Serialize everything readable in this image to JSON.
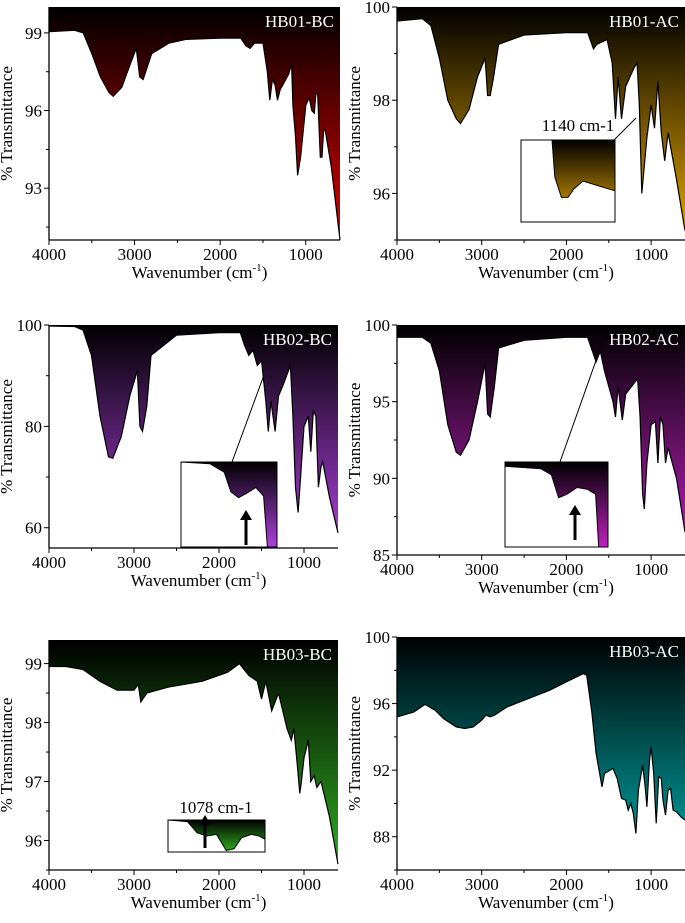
{
  "chart_data": [
    {
      "type": "area",
      "title": "HB01-BC",
      "color": "#e00000",
      "xlabel": "Wavenumber (cm-1)",
      "ylabel": "% Transmittance",
      "xlim": [
        4000,
        600
      ],
      "ylim": [
        91,
        100
      ],
      "xticks": [
        4000,
        3000,
        2000,
        1000
      ],
      "yticks": [
        93,
        96,
        99
      ],
      "points": [
        [
          4000,
          99.05
        ],
        [
          3700,
          99.1
        ],
        [
          3600,
          99.0
        ],
        [
          3500,
          98.2
        ],
        [
          3400,
          97.3
        ],
        [
          3300,
          96.7
        ],
        [
          3250,
          96.55
        ],
        [
          3150,
          96.9
        ],
        [
          3050,
          97.8
        ],
        [
          2980,
          98.4
        ],
        [
          2940,
          97.3
        ],
        [
          2900,
          97.2
        ],
        [
          2860,
          97.6
        ],
        [
          2800,
          98.2
        ],
        [
          2600,
          98.6
        ],
        [
          2400,
          98.75
        ],
        [
          2000,
          98.8
        ],
        [
          1760,
          98.8
        ],
        [
          1700,
          98.5
        ],
        [
          1650,
          98.4
        ],
        [
          1600,
          98.6
        ],
        [
          1500,
          98.6
        ],
        [
          1450,
          97.5
        ],
        [
          1420,
          96.4
        ],
        [
          1390,
          97.2
        ],
        [
          1360,
          97.0
        ],
        [
          1330,
          96.4
        ],
        [
          1300,
          96.8
        ],
        [
          1250,
          97.1
        ],
        [
          1200,
          97.4
        ],
        [
          1165,
          97.8
        ],
        [
          1150,
          96.2
        ],
        [
          1120,
          95.0
        ],
        [
          1095,
          93.5
        ],
        [
          1060,
          94.2
        ],
        [
          1000,
          96.2
        ],
        [
          960,
          96.5
        ],
        [
          930,
          96.0
        ],
        [
          900,
          95.9
        ],
        [
          880,
          96.7
        ],
        [
          860,
          96.6
        ],
        [
          830,
          94.2
        ],
        [
          810,
          94.2
        ],
        [
          790,
          95.3
        ],
        [
          770,
          95.2
        ],
        [
          700,
          93.8
        ],
        [
          600,
          91.0
        ]
      ]
    },
    {
      "type": "area",
      "title": "HB01-AC",
      "color": "#e8a800",
      "xlabel": "Wavenumber (cm-1)",
      "ylabel": "% Transmittance",
      "xlim": [
        4000,
        600
      ],
      "ylim": [
        95,
        100
      ],
      "xticks": [
        4000,
        3000,
        2000,
        1000
      ],
      "yticks": [
        96,
        98,
        100
      ],
      "annotation": "1140 cm-1",
      "points": [
        [
          4000,
          99.7
        ],
        [
          3700,
          99.75
        ],
        [
          3600,
          99.6
        ],
        [
          3500,
          98.9
        ],
        [
          3400,
          98.0
        ],
        [
          3300,
          97.6
        ],
        [
          3250,
          97.5
        ],
        [
          3150,
          97.8
        ],
        [
          3050,
          98.5
        ],
        [
          2960,
          98.9
        ],
        [
          2930,
          98.1
        ],
        [
          2900,
          98.1
        ],
        [
          2860,
          98.5
        ],
        [
          2800,
          99.2
        ],
        [
          2500,
          99.4
        ],
        [
          2000,
          99.45
        ],
        [
          1750,
          99.45
        ],
        [
          1680,
          99.1
        ],
        [
          1640,
          99.2
        ],
        [
          1520,
          99.3
        ],
        [
          1460,
          98.8
        ],
        [
          1420,
          97.6
        ],
        [
          1390,
          98.5
        ],
        [
          1350,
          97.6
        ],
        [
          1300,
          98.3
        ],
        [
          1200,
          98.7
        ],
        [
          1165,
          98.8
        ],
        [
          1140,
          97.9
        ],
        [
          1110,
          96.0
        ],
        [
          1050,
          97.2
        ],
        [
          1000,
          97.9
        ],
        [
          960,
          97.4
        ],
        [
          920,
          98.4
        ],
        [
          880,
          97.3
        ],
        [
          840,
          96.7
        ],
        [
          800,
          97.3
        ],
        [
          700,
          96.3
        ],
        [
          600,
          95.2
        ]
      ]
    },
    {
      "type": "area",
      "title": "HB02-BC",
      "color": "#b040e0",
      "xlabel": "Wavenumber (cm-1)",
      "ylabel": "% Transmittance",
      "xlim": [
        4000,
        600
      ],
      "ylim": [
        56,
        100
      ],
      "xticks": [
        4000,
        3000,
        2000,
        1000
      ],
      "yticks": [
        60,
        80,
        100
      ],
      "points": [
        [
          4000,
          99.8
        ],
        [
          3700,
          99.7
        ],
        [
          3600,
          99
        ],
        [
          3500,
          94
        ],
        [
          3400,
          82
        ],
        [
          3300,
          74
        ],
        [
          3250,
          73.7
        ],
        [
          3150,
          78
        ],
        [
          3050,
          86
        ],
        [
          2960,
          91
        ],
        [
          2930,
          80
        ],
        [
          2900,
          79
        ],
        [
          2850,
          84
        ],
        [
          2800,
          94
        ],
        [
          2500,
          98
        ],
        [
          2000,
          98.5
        ],
        [
          1750,
          98.5
        ],
        [
          1700,
          96
        ],
        [
          1650,
          94
        ],
        [
          1600,
          95
        ],
        [
          1550,
          92
        ],
        [
          1500,
          93
        ],
        [
          1450,
          85
        ],
        [
          1420,
          79
        ],
        [
          1390,
          85
        ],
        [
          1340,
          79
        ],
        [
          1300,
          86
        ],
        [
          1250,
          88
        ],
        [
          1160,
          92
        ],
        [
          1130,
          82
        ],
        [
          1100,
          68
        ],
        [
          1070,
          63
        ],
        [
          1040,
          70
        ],
        [
          1000,
          80
        ],
        [
          950,
          82
        ],
        [
          920,
          75
        ],
        [
          890,
          83
        ],
        [
          860,
          82
        ],
        [
          830,
          68
        ],
        [
          800,
          72
        ],
        [
          780,
          73
        ],
        [
          700,
          66
        ],
        [
          600,
          59
        ]
      ]
    },
    {
      "type": "area",
      "title": "HB02-AC",
      "color": "#c020c0",
      "xlabel": "Wavenumber (cm-1)",
      "ylabel": "% Transmittance",
      "xlim": [
        4000,
        600
      ],
      "ylim": [
        85,
        100
      ],
      "xticks": [
        4000,
        3000,
        2000,
        1000
      ],
      "yticks": [
        85,
        90,
        95,
        100
      ],
      "points": [
        [
          4000,
          99.2
        ],
        [
          3700,
          99.2
        ],
        [
          3600,
          98.8
        ],
        [
          3500,
          97
        ],
        [
          3400,
          93.5
        ],
        [
          3300,
          91.7
        ],
        [
          3250,
          91.5
        ],
        [
          3150,
          92.5
        ],
        [
          3050,
          95
        ],
        [
          2960,
          97.5
        ],
        [
          2930,
          94.2
        ],
        [
          2900,
          94
        ],
        [
          2850,
          96
        ],
        [
          2800,
          98.5
        ],
        [
          2500,
          99
        ],
        [
          2000,
          99.2
        ],
        [
          1750,
          99.2
        ],
        [
          1650,
          97.6
        ],
        [
          1600,
          98.3
        ],
        [
          1550,
          97
        ],
        [
          1450,
          95
        ],
        [
          1420,
          94
        ],
        [
          1390,
          96
        ],
        [
          1340,
          93.8
        ],
        [
          1300,
          95.5
        ],
        [
          1160,
          96.5
        ],
        [
          1130,
          94
        ],
        [
          1100,
          89
        ],
        [
          1080,
          88
        ],
        [
          1050,
          91
        ],
        [
          1000,
          93.5
        ],
        [
          950,
          93.7
        ],
        [
          920,
          91
        ],
        [
          890,
          94
        ],
        [
          860,
          93.5
        ],
        [
          830,
          91
        ],
        [
          800,
          92
        ],
        [
          700,
          90
        ],
        [
          600,
          86.5
        ]
      ]
    },
    {
      "type": "area",
      "title": "HB03-BC",
      "color": "#30b020",
      "xlabel": "Wavenumber (cm-1)",
      "ylabel": "% Transmittance",
      "xlim": [
        4000,
        600
      ],
      "ylim": [
        95.5,
        99.4
      ],
      "xticks": [
        4000,
        3000,
        2000,
        1000
      ],
      "yticks": [
        96,
        97,
        98,
        99
      ],
      "annotation": "1078 cm-1",
      "points": [
        [
          4000,
          98.95
        ],
        [
          3800,
          98.95
        ],
        [
          3600,
          98.9
        ],
        [
          3400,
          98.7
        ],
        [
          3200,
          98.55
        ],
        [
          3000,
          98.55
        ],
        [
          2950,
          98.65
        ],
        [
          2920,
          98.35
        ],
        [
          2850,
          98.5
        ],
        [
          2600,
          98.6
        ],
        [
          2200,
          98.7
        ],
        [
          1900,
          98.85
        ],
        [
          1760,
          99.0
        ],
        [
          1650,
          98.8
        ],
        [
          1550,
          98.7
        ],
        [
          1500,
          98.4
        ],
        [
          1450,
          98.7
        ],
        [
          1380,
          98.2
        ],
        [
          1300,
          98.5
        ],
        [
          1200,
          97.9
        ],
        [
          1150,
          97.7
        ],
        [
          1120,
          97.9
        ],
        [
          1080,
          97.3
        ],
        [
          1050,
          96.8
        ],
        [
          1030,
          97.0
        ],
        [
          1000,
          97.4
        ],
        [
          950,
          97.7
        ],
        [
          920,
          97.0
        ],
        [
          880,
          97.1
        ],
        [
          850,
          96.9
        ],
        [
          800,
          97.0
        ],
        [
          700,
          96.4
        ],
        [
          600,
          95.6
        ]
      ]
    },
    {
      "type": "area",
      "title": "HB03-AC",
      "color": "#00b0b0",
      "xlabel": "Wavenumber (cm-1)",
      "ylabel": "% Transmittance",
      "xlim": [
        4000,
        600
      ],
      "ylim": [
        86,
        100
      ],
      "xticks": [
        4000,
        3000,
        2000,
        1000
      ],
      "yticks": [
        88,
        92,
        96,
        100
      ],
      "points": [
        [
          4000,
          95.2
        ],
        [
          3800,
          95.5
        ],
        [
          3670,
          95.95
        ],
        [
          3550,
          95.6
        ],
        [
          3450,
          95.1
        ],
        [
          3300,
          94.6
        ],
        [
          3200,
          94.5
        ],
        [
          3100,
          94.6
        ],
        [
          3000,
          95.0
        ],
        [
          2950,
          95.3
        ],
        [
          2900,
          95.2
        ],
        [
          2850,
          95.3
        ],
        [
          2700,
          95.8
        ],
        [
          2400,
          96.4
        ],
        [
          2200,
          96.8
        ],
        [
          2000,
          97.3
        ],
        [
          1800,
          97.8
        ],
        [
          1760,
          97.7
        ],
        [
          1700,
          95.5
        ],
        [
          1650,
          93
        ],
        [
          1580,
          91.0
        ],
        [
          1550,
          91.8
        ],
        [
          1450,
          92.1
        ],
        [
          1400,
          91.5
        ],
        [
          1350,
          90.3
        ],
        [
          1300,
          90.2
        ],
        [
          1270,
          89.6
        ],
        [
          1240,
          90.0
        ],
        [
          1210,
          89.4
        ],
        [
          1180,
          88.2
        ],
        [
          1150,
          90.8
        ],
        [
          1100,
          92.3
        ],
        [
          1070,
          91.0
        ],
        [
          1050,
          89.8
        ],
        [
          1020,
          92.5
        ],
        [
          1000,
          93.4
        ],
        [
          970,
          91.8
        ],
        [
          940,
          88.8
        ],
        [
          910,
          91.6
        ],
        [
          880,
          91.5
        ],
        [
          860,
          90.2
        ],
        [
          830,
          89.3
        ],
        [
          800,
          90.8
        ],
        [
          770,
          90.9
        ],
        [
          740,
          89.6
        ],
        [
          700,
          89.5
        ],
        [
          650,
          89.2
        ],
        [
          600,
          89.0
        ]
      ]
    }
  ]
}
